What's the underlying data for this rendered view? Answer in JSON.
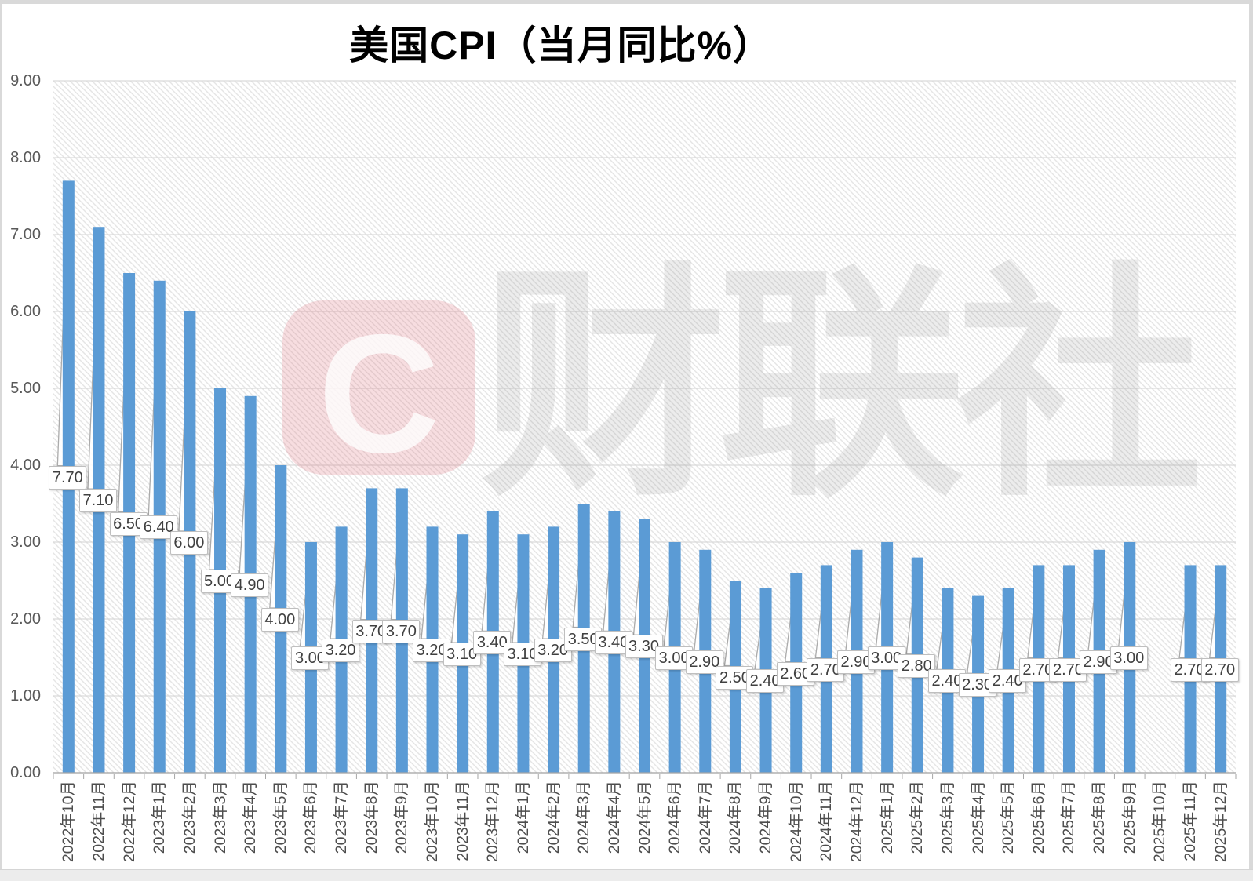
{
  "chart_data": {
    "type": "bar",
    "title": "美国CPI（当月同比%）",
    "xlabel": "",
    "ylabel": "",
    "ylim": [
      0,
      9
    ],
    "grid": "horizontal",
    "legend": "none",
    "bar_color": "#5B9BD5",
    "gridline_color": "#D9D9D9",
    "axis_color": "#A6A6A6",
    "plot_bg_pattern": "diagonal-hatch",
    "y_tick_labels": [
      "0.00",
      "1.00",
      "2.00",
      "3.00",
      "4.00",
      "5.00",
      "6.00",
      "7.00",
      "8.00",
      "9.00"
    ],
    "categories": [
      "2022年10月",
      "2022年11月",
      "2022年12月",
      "2023年1月",
      "2023年2月",
      "2023年3月",
      "2023年4月",
      "2023年5月",
      "2023年6月",
      "2023年7月",
      "2023年8月",
      "2023年9月",
      "2023年10月",
      "2023年11月",
      "2023年12月",
      "2024年1月",
      "2024年2月",
      "2024年3月",
      "2024年4月",
      "2024年5月",
      "2024年6月",
      "2024年7月",
      "2024年8月",
      "2024年9月",
      "2024年10月",
      "2024年11月",
      "2024年12月",
      "2025年1月",
      "2025年2月",
      "2025年3月",
      "2025年4月",
      "2025年5月",
      "2025年6月",
      "2025年7月",
      "2025年8月",
      "2025年9月",
      "2025年10月",
      "2025年11月",
      "2025年12月"
    ],
    "values": [
      7.7,
      7.1,
      6.5,
      6.4,
      6.0,
      5.0,
      4.9,
      4.0,
      3.0,
      3.2,
      3.7,
      3.7,
      3.2,
      3.1,
      3.4,
      3.1,
      3.2,
      3.5,
      3.4,
      3.3,
      3.0,
      2.9,
      2.5,
      2.4,
      2.6,
      2.7,
      2.9,
      3.0,
      2.8,
      2.4,
      2.3,
      2.4,
      2.7,
      2.7,
      2.9,
      3.0,
      null,
      2.7,
      2.7
    ],
    "data_labels": [
      "7.70",
      "7.10",
      "6.50",
      "6.40",
      "6.00",
      "5.00",
      "4.90",
      "4.00",
      "3.00",
      "3.20",
      "3.70",
      "3.70",
      "3.20",
      "3.10",
      "3.40",
      "3.10",
      "3.20",
      "3.50",
      "3.40",
      "3.30",
      "3.00",
      "2.90",
      "2.50",
      "2.40",
      "2.60",
      "2.70",
      "2.90",
      "3.00",
      "2.80",
      "2.40",
      "2.30",
      "2.40",
      "2.70",
      "2.70",
      "2.90",
      "3.00",
      null,
      "2.70",
      "2.70"
    ]
  },
  "watermark": {
    "logo_letter": "C",
    "logo_color": "#DD6F7E",
    "text": "财联社"
  }
}
